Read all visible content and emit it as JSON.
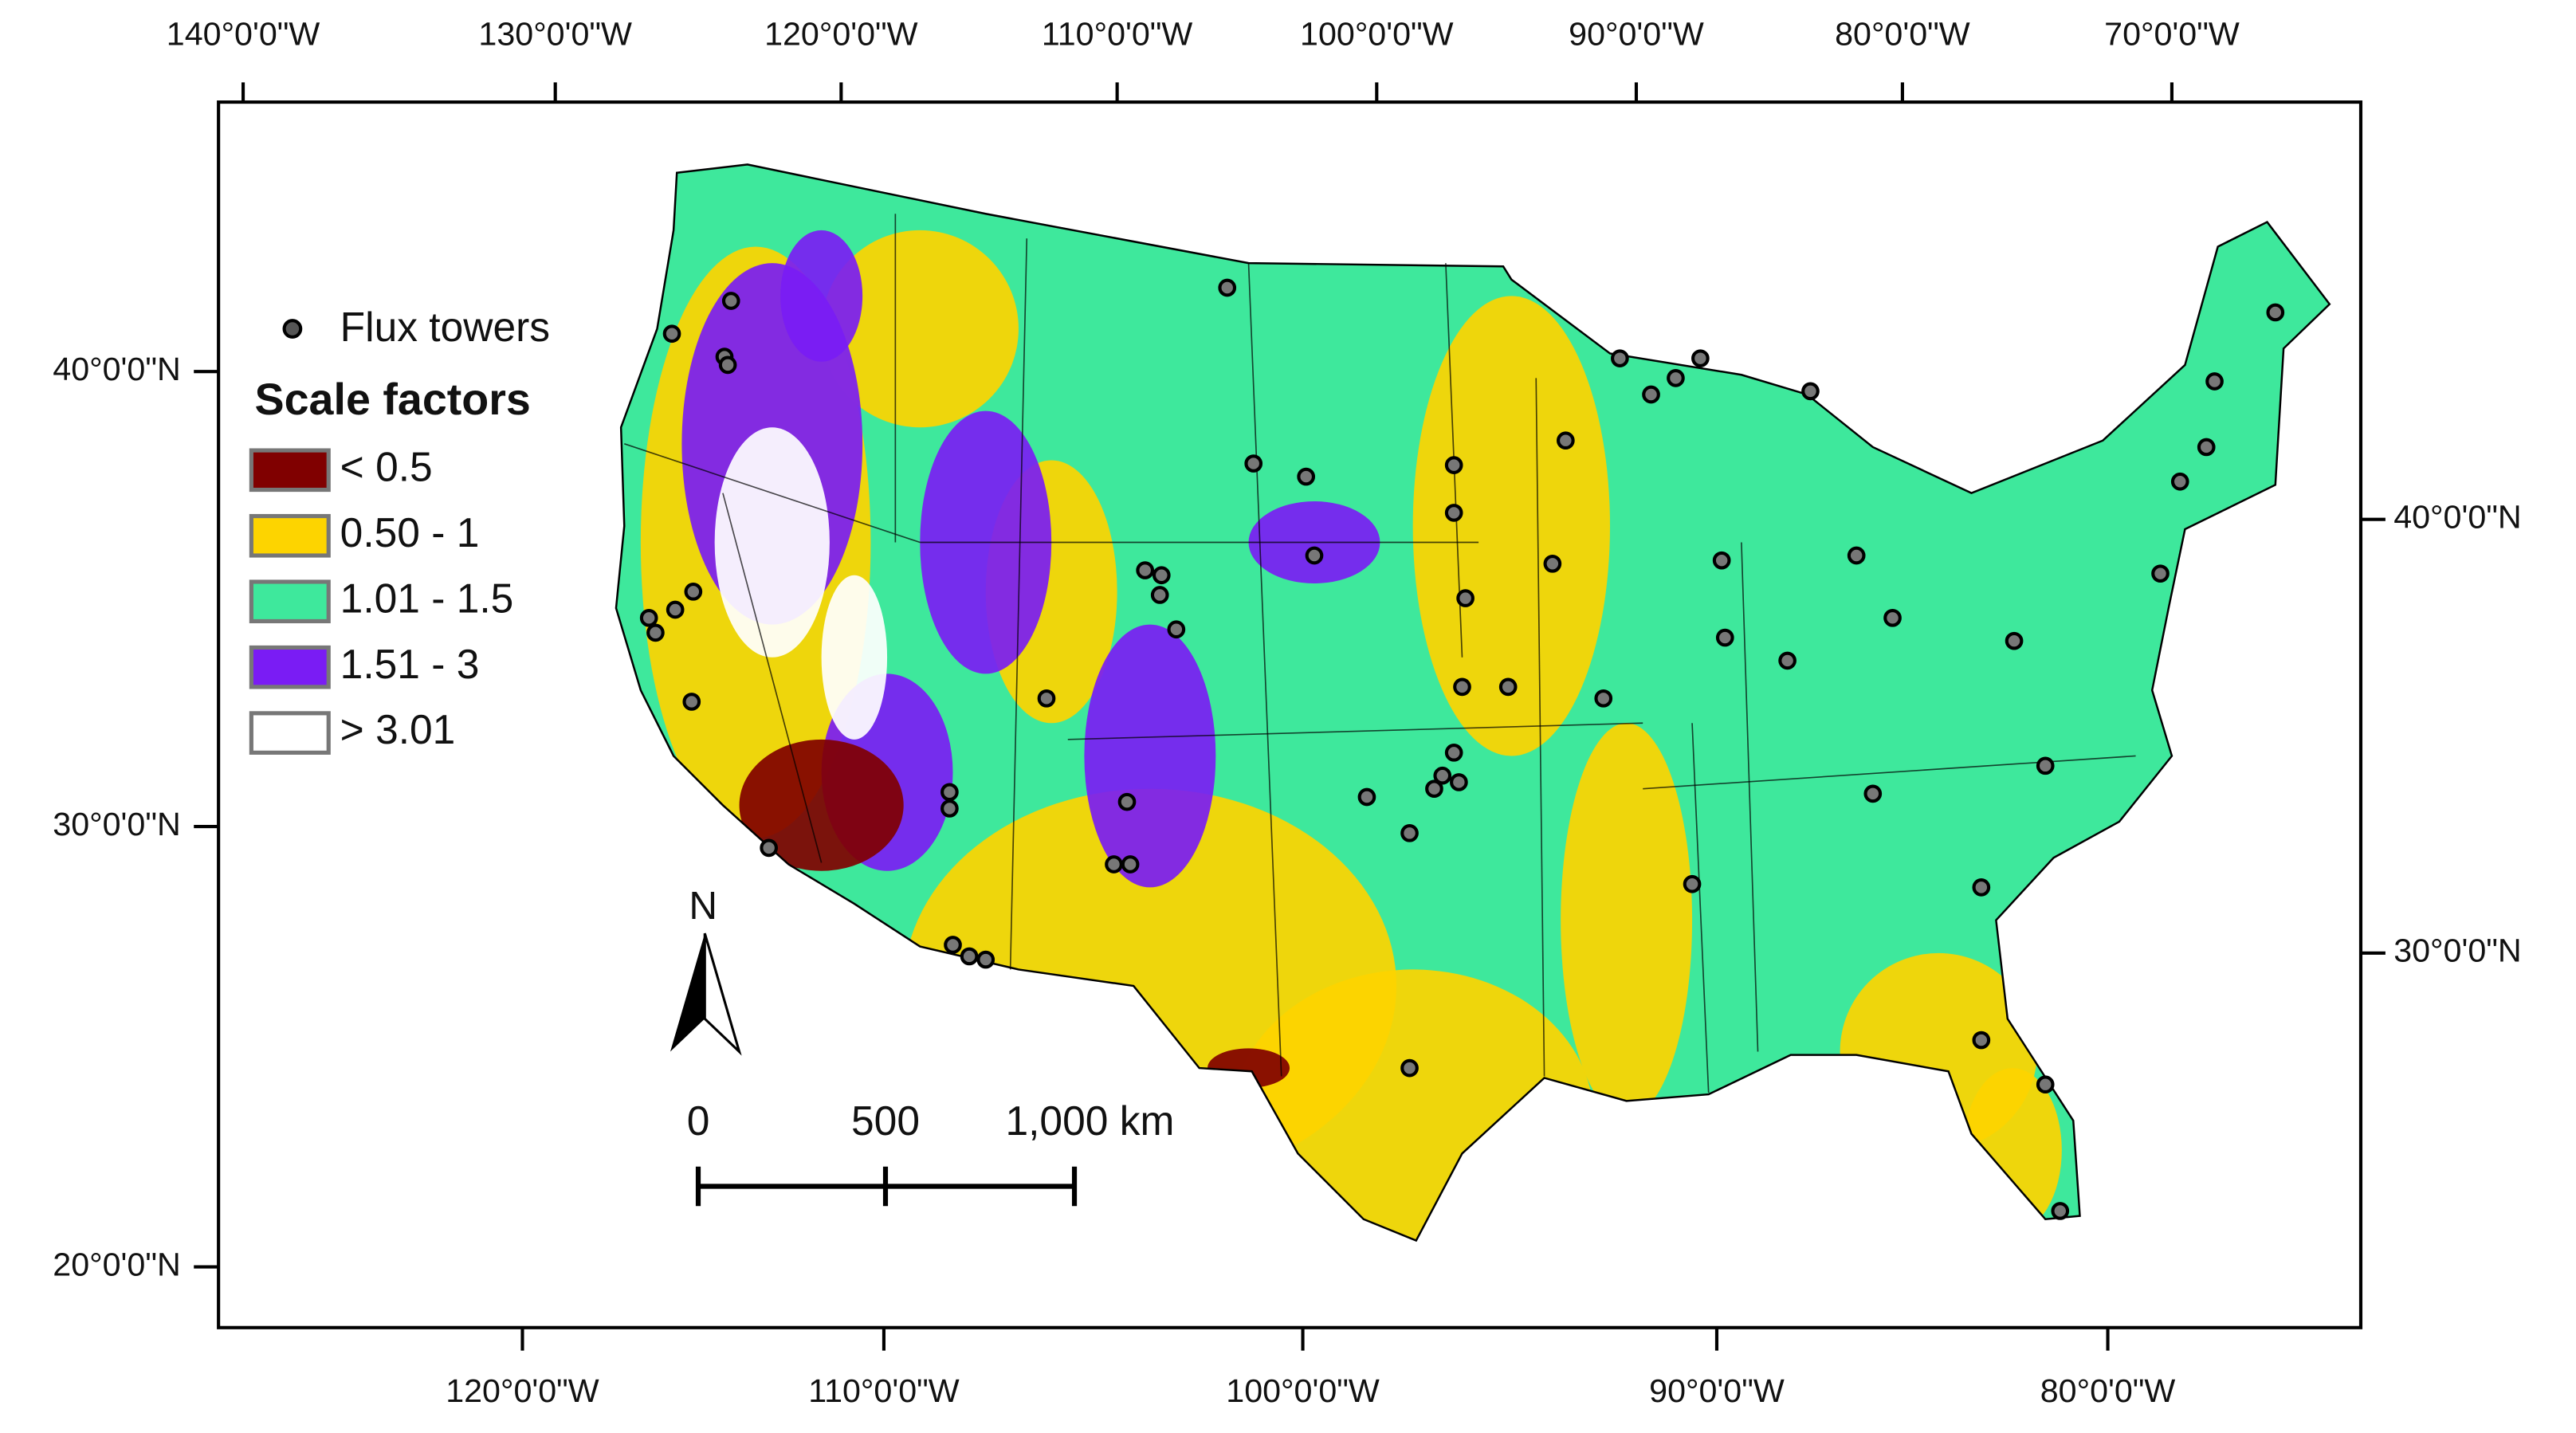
{
  "map": {
    "top_labels": [
      "140°0'0\"W",
      "130°0'0\"W",
      "120°0'0\"W",
      "110°0'0\"W",
      "100°0'0\"W",
      "90°0'0\"W",
      "80°0'0\"W",
      "70°0'0\"W"
    ],
    "bottom_labels": [
      "120°0'0\"W",
      "110°0'0\"W",
      "100°0'0\"W",
      "90°0'0\"W",
      "80°0'0\"W"
    ],
    "left_labels": [
      "40°0'0\"N",
      "30°0'0\"N",
      "20°0'0\"N"
    ],
    "right_labels": [
      "40°0'0\"N",
      "30°0'0\"N"
    ],
    "legend": {
      "point_label": "Flux towers",
      "title": "Scale factors",
      "items": [
        {
          "label": "< 0.5",
          "color": "#800000"
        },
        {
          "label": "0.50 - 1",
          "color": "#fdd400"
        },
        {
          "label": "1.01 - 1.5",
          "color": "#3ee89c"
        },
        {
          "label": "1.51 - 3",
          "color": "#7a1cf4"
        },
        {
          "label": "> 3.01",
          "color": "#ffffff"
        }
      ]
    },
    "north_label": "N",
    "scale_labels": [
      "0",
      "500",
      "1,000 km"
    ]
  }
}
